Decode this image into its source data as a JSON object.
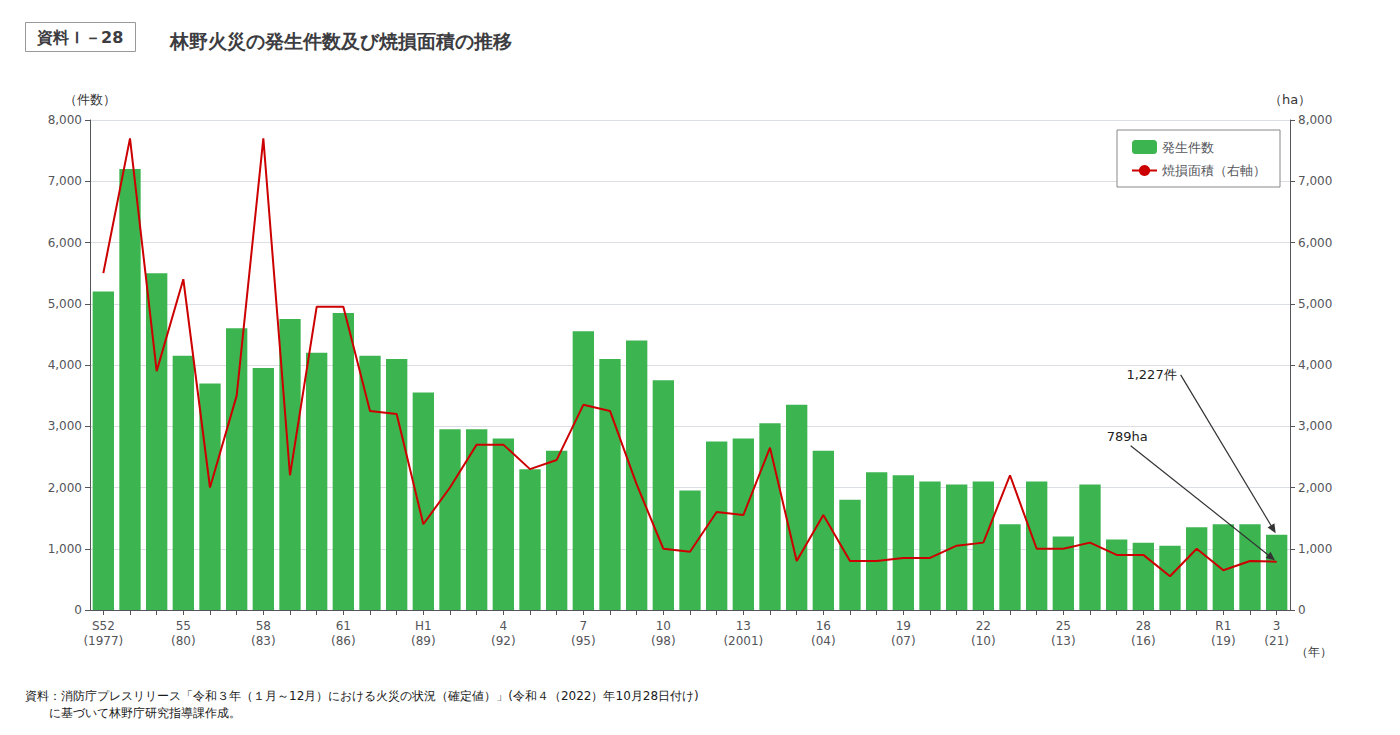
{
  "chart_data": {
    "type": "bar",
    "title": "林野火災の発生件数及び焼損面積の推移",
    "subtitle": "資料Ｉ－28",
    "xlabel": "（年）",
    "ylabel": "（件数）",
    "y2label": "（ha）",
    "caption": "資料：消防庁プレスリリース「令和３年（１月～12月）における火災の状況（確定値）」(令和４（2022）年10月28日付け)\n　　に基づいて林野庁研究指導課作成。",
    "categories": [
      "S52\n(1977)",
      null,
      null,
      "55\n(80)",
      null,
      null,
      "58\n(83)",
      null,
      null,
      "61\n(86)",
      null,
      null,
      "H1\n(89)",
      null,
      null,
      "4\n(92)",
      null,
      null,
      "7\n(95)",
      null,
      null,
      "10\n(98)",
      null,
      null,
      "13\n(2001)",
      null,
      null,
      "16\n(04)",
      null,
      null,
      "19\n(07)",
      null,
      null,
      "22\n(10)",
      null,
      null,
      "25\n(13)",
      null,
      null,
      "28\n(16)",
      null,
      null,
      "R1\n(19)",
      null,
      "3\n(21)"
    ],
    "series": [
      {
        "name": "発生件数",
        "type": "bar",
        "color": "#3cb550",
        "values": [
          5200,
          7200,
          5500,
          4150,
          3700,
          4600,
          3950,
          4750,
          4200,
          4850,
          4150,
          4100,
          3550,
          2950,
          2950,
          2800,
          2300,
          2600,
          4550,
          4100,
          4400,
          3750,
          1950,
          2750,
          2800,
          3050,
          3350,
          2600,
          1800,
          2250,
          2200,
          2100,
          2050,
          2100,
          1400,
          2100,
          1200,
          2050,
          1150,
          1100,
          1050,
          1350,
          1400,
          1400,
          1227
        ]
      },
      {
        "name": "焼損面積（右軸）",
        "type": "line",
        "color": "#cc0000",
        "axis": "y2",
        "values": [
          5500,
          7700,
          3900,
          5400,
          2000,
          3500,
          7700,
          2200,
          4950,
          4950,
          3250,
          3200,
          1400,
          2000,
          2700,
          2700,
          2300,
          2450,
          3350,
          3250,
          2050,
          1000,
          950,
          1600,
          1550,
          2650,
          800,
          1550,
          800,
          800,
          850,
          850,
          1050,
          1100,
          2200,
          1000,
          1000,
          1100,
          900,
          900,
          550,
          1000,
          650,
          800,
          789
        ]
      }
    ],
    "ylim": [
      0,
      8000
    ],
    "yticks": [
      0,
      {
        "value": 1000,
        "label": "1,000"
      },
      {
        "value": 2000,
        "label": "2,000"
      },
      {
        "value": 3000,
        "label": "3,000"
      },
      {
        "value": 4000,
        "label": "4,000"
      },
      {
        "value": 5000,
        "label": "5,000"
      },
      {
        "value": 6000,
        "label": "6,000"
      },
      {
        "value": 7000,
        "label": "7,000"
      },
      {
        "value": 8000,
        "label": "8,000"
      }
    ],
    "y2lim": [
      0,
      8000
    ],
    "y2ticks": [
      0,
      {
        "value": 1000,
        "label": "1,000"
      },
      {
        "value": 2000,
        "label": "2,000"
      },
      {
        "value": 3000,
        "label": "3,000"
      },
      {
        "value": 4000,
        "label": "4,000"
      },
      {
        "value": 5000,
        "label": "5,000"
      },
      {
        "value": 6000,
        "label": "6,000"
      },
      {
        "value": 7000,
        "label": "7,000"
      },
      {
        "value": 8000,
        "label": "8,000"
      }
    ],
    "grid": true,
    "legend": "upper right",
    "annotations": [
      {
        "text": "1,227件",
        "category": "3\n(21)",
        "value": 1227,
        "axis": "y"
      },
      {
        "text": "789ha",
        "category": "3\n(21)",
        "value": 789,
        "axis": "y2"
      }
    ]
  }
}
